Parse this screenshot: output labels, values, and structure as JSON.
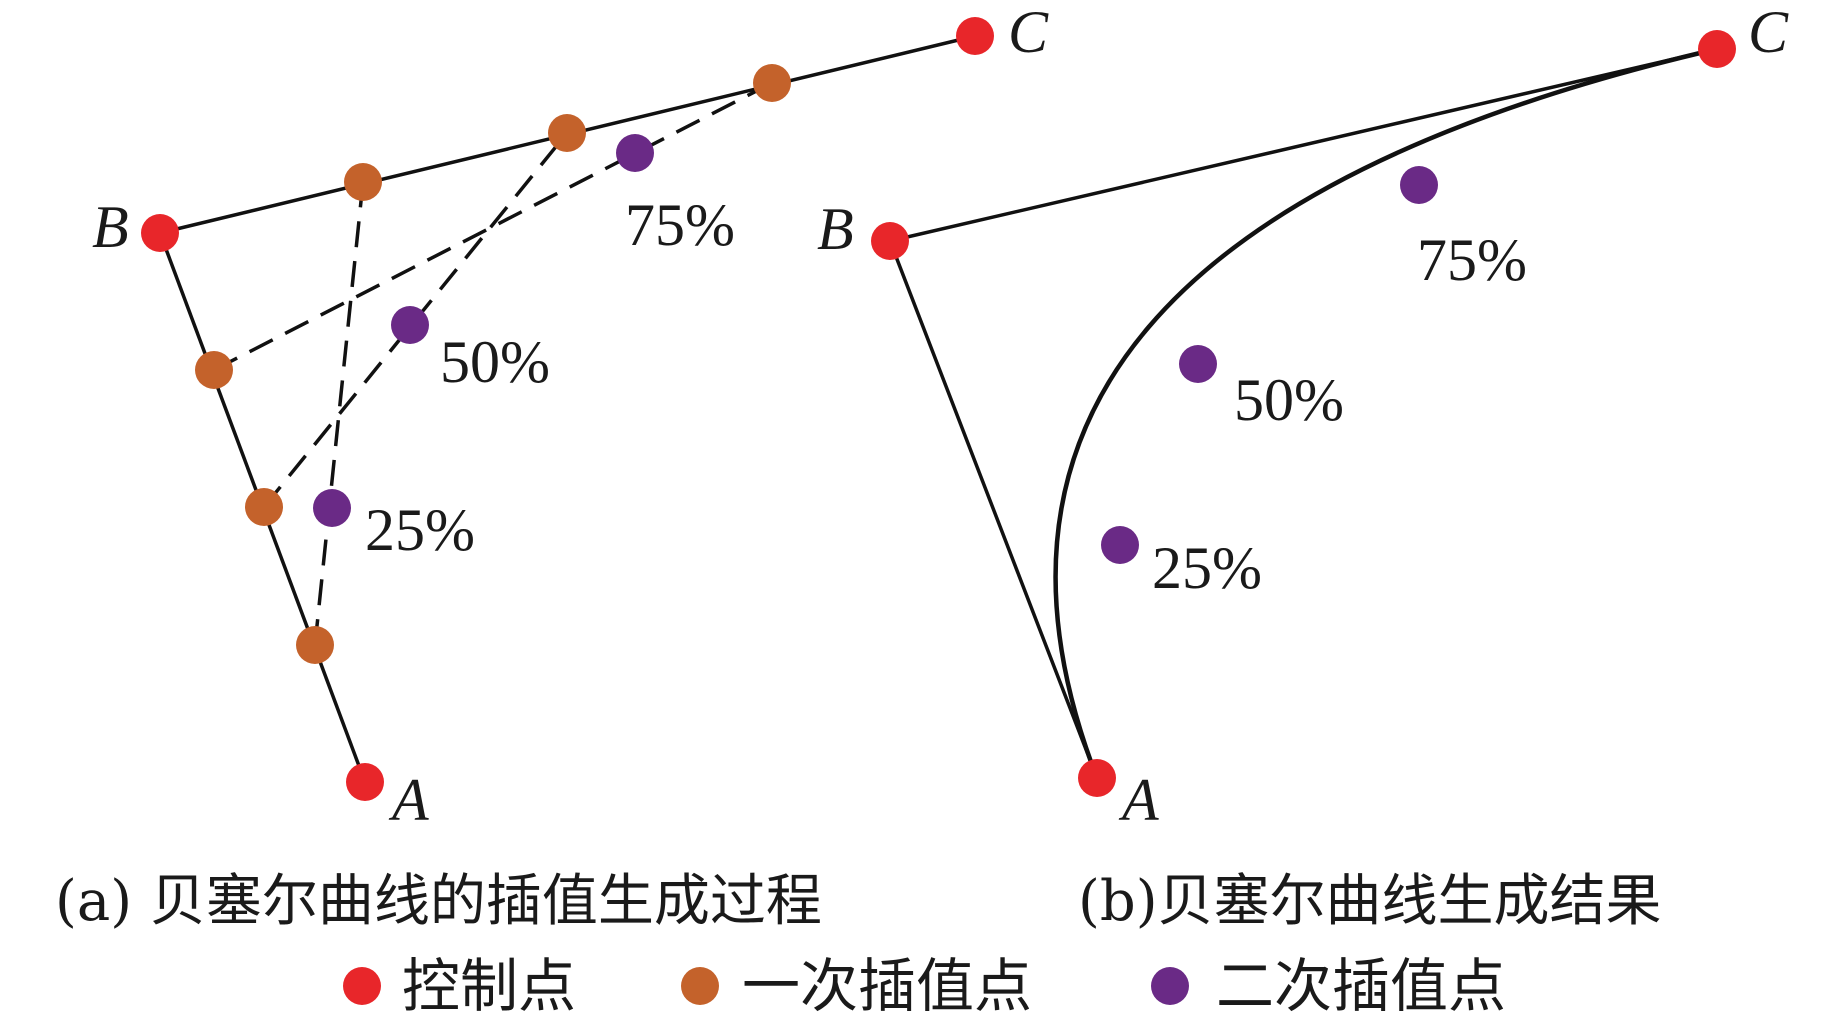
{
  "colors": {
    "control": "#e8262a",
    "first_order": "#c4622b",
    "second_order": "#6a2a86",
    "line": "#111111"
  },
  "panel_a": {
    "caption": "(a) 贝塞尔曲线的插值生成过程",
    "labels": {
      "A": "A",
      "B": "B",
      "C": "C"
    },
    "pct": {
      "p25": "25%",
      "p50": "50%",
      "p75": "75%"
    }
  },
  "panel_b": {
    "caption": "(b)贝塞尔曲线生成结果",
    "labels": {
      "A": "A",
      "B": "B",
      "C": "C"
    },
    "pct": {
      "p25": "25%",
      "p50": "50%",
      "p75": "75%"
    }
  },
  "legend": {
    "control": "控制点",
    "first_order": "一次插值点",
    "second_order": "二次插值点"
  }
}
